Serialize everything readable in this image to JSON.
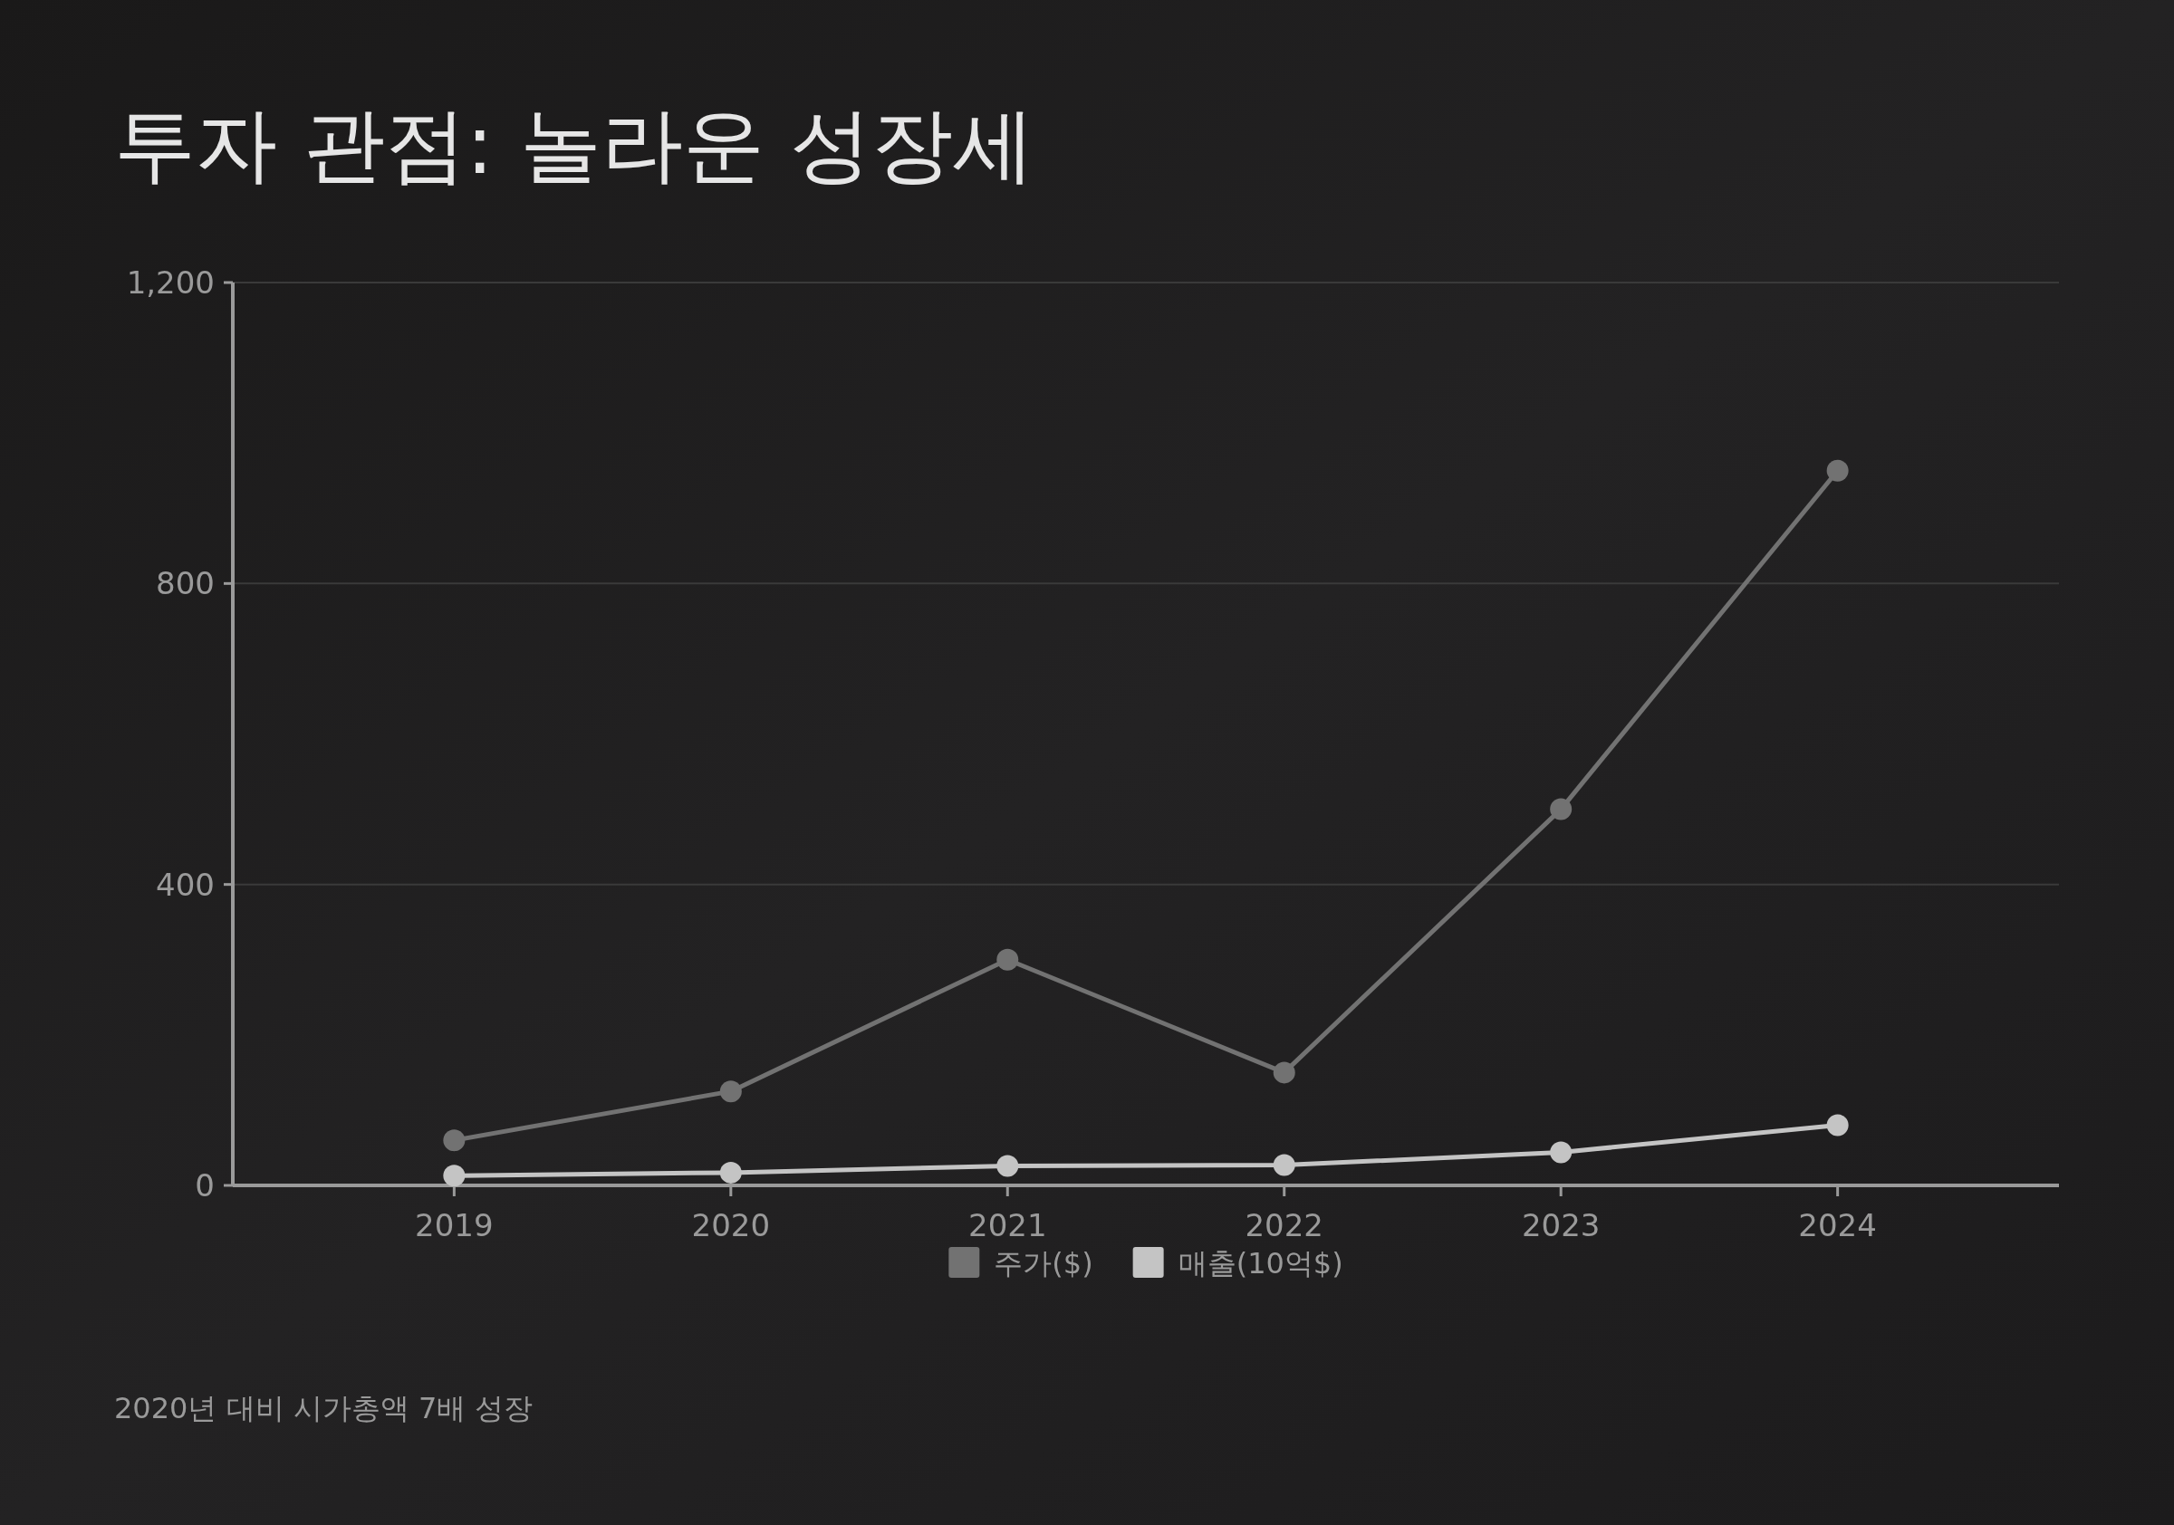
{
  "chart_data": {
    "type": "line",
    "title": "투자 관점: 놀라운 성장세",
    "categories": [
      "2019",
      "2020",
      "2021",
      "2022",
      "2023",
      "2024"
    ],
    "series": [
      {
        "name": "주가($)",
        "color": "#727272",
        "values": [
          60,
          125,
          300,
          150,
          500,
          950
        ]
      },
      {
        "name": "매출(10억$)",
        "color": "#c4c4c4",
        "values": [
          13,
          17,
          26,
          27,
          44,
          80
        ]
      }
    ],
    "ylim": [
      0,
      1200
    ],
    "yticks": [
      0,
      400,
      800,
      {
        "value": 1200,
        "label": "1,200"
      }
    ],
    "grid": "y",
    "legend": "bottom",
    "marker": "circle",
    "line_style": "solid",
    "annotations": [
      "2020년 대비 시가총액 7배 성장"
    ]
  }
}
